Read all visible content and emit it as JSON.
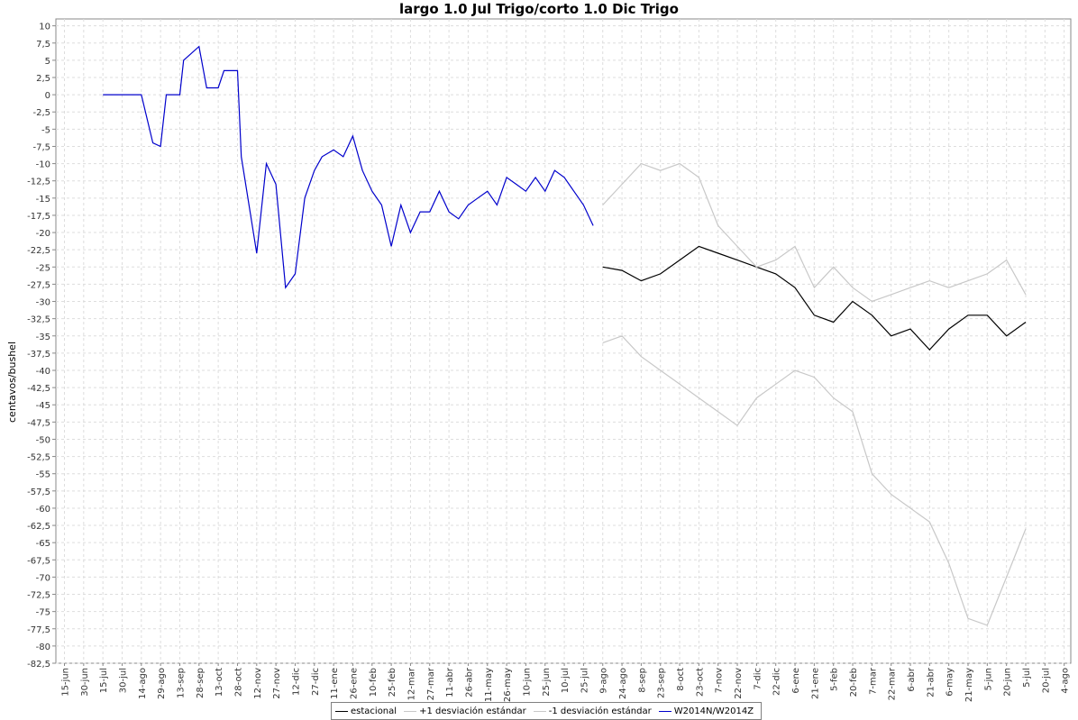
{
  "chart_data": {
    "type": "line",
    "title": "largo 1.0 Jul Trigo/corto 1.0 Dic Trigo",
    "ylabel": "centavos/bushel",
    "xlabel": "",
    "ylim": [
      -82.5,
      11
    ],
    "y_ticks": [
      "10",
      "7,5",
      "5",
      "2,5",
      "0",
      "-2,5",
      "-5",
      "-7,5",
      "-10",
      "-12,5",
      "-15",
      "-17,5",
      "-20",
      "-22,5",
      "-25",
      "-27,5",
      "-30",
      "-32,5",
      "-35",
      "-37,5",
      "-40",
      "-42,5",
      "-45",
      "-47,5",
      "-50",
      "-52,5",
      "-55",
      "-57,5",
      "-60",
      "-62,5",
      "-65",
      "-67,5",
      "-70",
      "-72,5",
      "-75",
      "-77,5",
      "-80",
      "-82,5"
    ],
    "x_ticks": [
      "15-jun",
      "30-jun",
      "15-jul",
      "30-jul",
      "14-ago",
      "29-ago",
      "13-sep",
      "28-sep",
      "13-oct",
      "28-oct",
      "12-nov",
      "27-nov",
      "12-dic",
      "27-dic",
      "11-ene",
      "26-ene",
      "10-feb",
      "25-feb",
      "12-mar",
      "27-mar",
      "11-abr",
      "26-abr",
      "11-may",
      "26-may",
      "10-jun",
      "25-jun",
      "10-jul",
      "25-jul",
      "9-ago",
      "24-ago",
      "8-sep",
      "23-sep",
      "8-oct",
      "23-oct",
      "7-nov",
      "22-nov",
      "7-dic",
      "22-dic",
      "6-ene",
      "21-ene",
      "5-feb",
      "20-feb",
      "7-mar",
      "22-mar",
      "6-abr",
      "21-abr",
      "6-may",
      "21-may",
      "5-jun",
      "20-jun",
      "5-jul",
      "20-jul",
      "4-ago"
    ],
    "grid": true,
    "legend_position": "bottom",
    "series": [
      {
        "name": "estacional",
        "color": "#000000",
        "x": [
          28,
          29,
          30,
          31,
          32,
          33,
          34,
          35,
          36,
          37,
          38,
          39,
          40,
          41,
          42,
          43,
          44,
          45,
          46,
          47,
          48,
          49,
          50
        ],
        "values": [
          -25,
          -25.5,
          -27,
          -26,
          -24,
          -22,
          -23,
          -24,
          -25,
          -26,
          -28,
          -32,
          -33,
          -30,
          -32,
          -35,
          -34,
          -37,
          -34,
          -32,
          -32,
          -35,
          -33
        ]
      },
      {
        "name": "+1 desviación estándar",
        "color": "#c8c8c8",
        "x": [
          28,
          29,
          30,
          31,
          32,
          33,
          34,
          35,
          36,
          37,
          38,
          39,
          40,
          41,
          42,
          43,
          44,
          45,
          46,
          47,
          48,
          49,
          50
        ],
        "values": [
          -16,
          -13,
          -10,
          -11,
          -10,
          -12,
          -19,
          -22,
          -25,
          -24,
          -22,
          -28,
          -25,
          -28,
          -30,
          -29,
          -28,
          -27,
          -28,
          -27,
          -26,
          -24,
          -29
        ]
      },
      {
        "name": "-1 desviación estándar",
        "color": "#c8c8c8",
        "x": [
          28,
          29,
          30,
          31,
          32,
          33,
          34,
          35,
          36,
          37,
          38,
          39,
          40,
          41,
          42,
          43,
          44,
          45,
          46,
          47,
          48,
          49,
          50
        ],
        "values": [
          -36,
          -35,
          -38,
          -40,
          -42,
          -44,
          -46,
          -48,
          -44,
          -42,
          -40,
          -41,
          -44,
          -46,
          -55,
          -58,
          -60,
          -62,
          -68,
          -76,
          -77,
          -70,
          -63
        ]
      },
      {
        "name": "W2014N/W2014Z",
        "color": "#0000cc",
        "x": [
          2,
          3,
          4,
          4.6,
          5,
          5.3,
          6,
          6.2,
          7,
          7.4,
          8,
          8.3,
          9,
          9.2,
          10,
          10.5,
          11,
          11.5,
          12,
          12.5,
          13,
          13.4,
          14,
          14.5,
          15,
          15.5,
          16,
          16.5,
          17,
          17.5,
          18,
          18.5,
          19,
          19.5,
          20,
          20.5,
          21,
          21.5,
          22,
          22.5,
          23,
          23.5,
          24,
          24.5,
          25,
          25.5,
          26,
          26.5,
          27,
          27.5
        ],
        "values": [
          0,
          0,
          0,
          -7,
          -7.5,
          0,
          0,
          5,
          7,
          1,
          1,
          3.5,
          3.5,
          -9,
          -23,
          -10,
          -13,
          -28,
          -26,
          -15,
          -11,
          -9,
          -8,
          -9,
          -6,
          -11,
          -14,
          -16,
          -22,
          -16,
          -20,
          -17,
          -17,
          -14,
          -17,
          -18,
          -16,
          -15,
          -14,
          -16,
          -12,
          -13,
          -14,
          -12,
          -14,
          -11,
          -12,
          -14,
          -16,
          -19
        ]
      }
    ]
  }
}
